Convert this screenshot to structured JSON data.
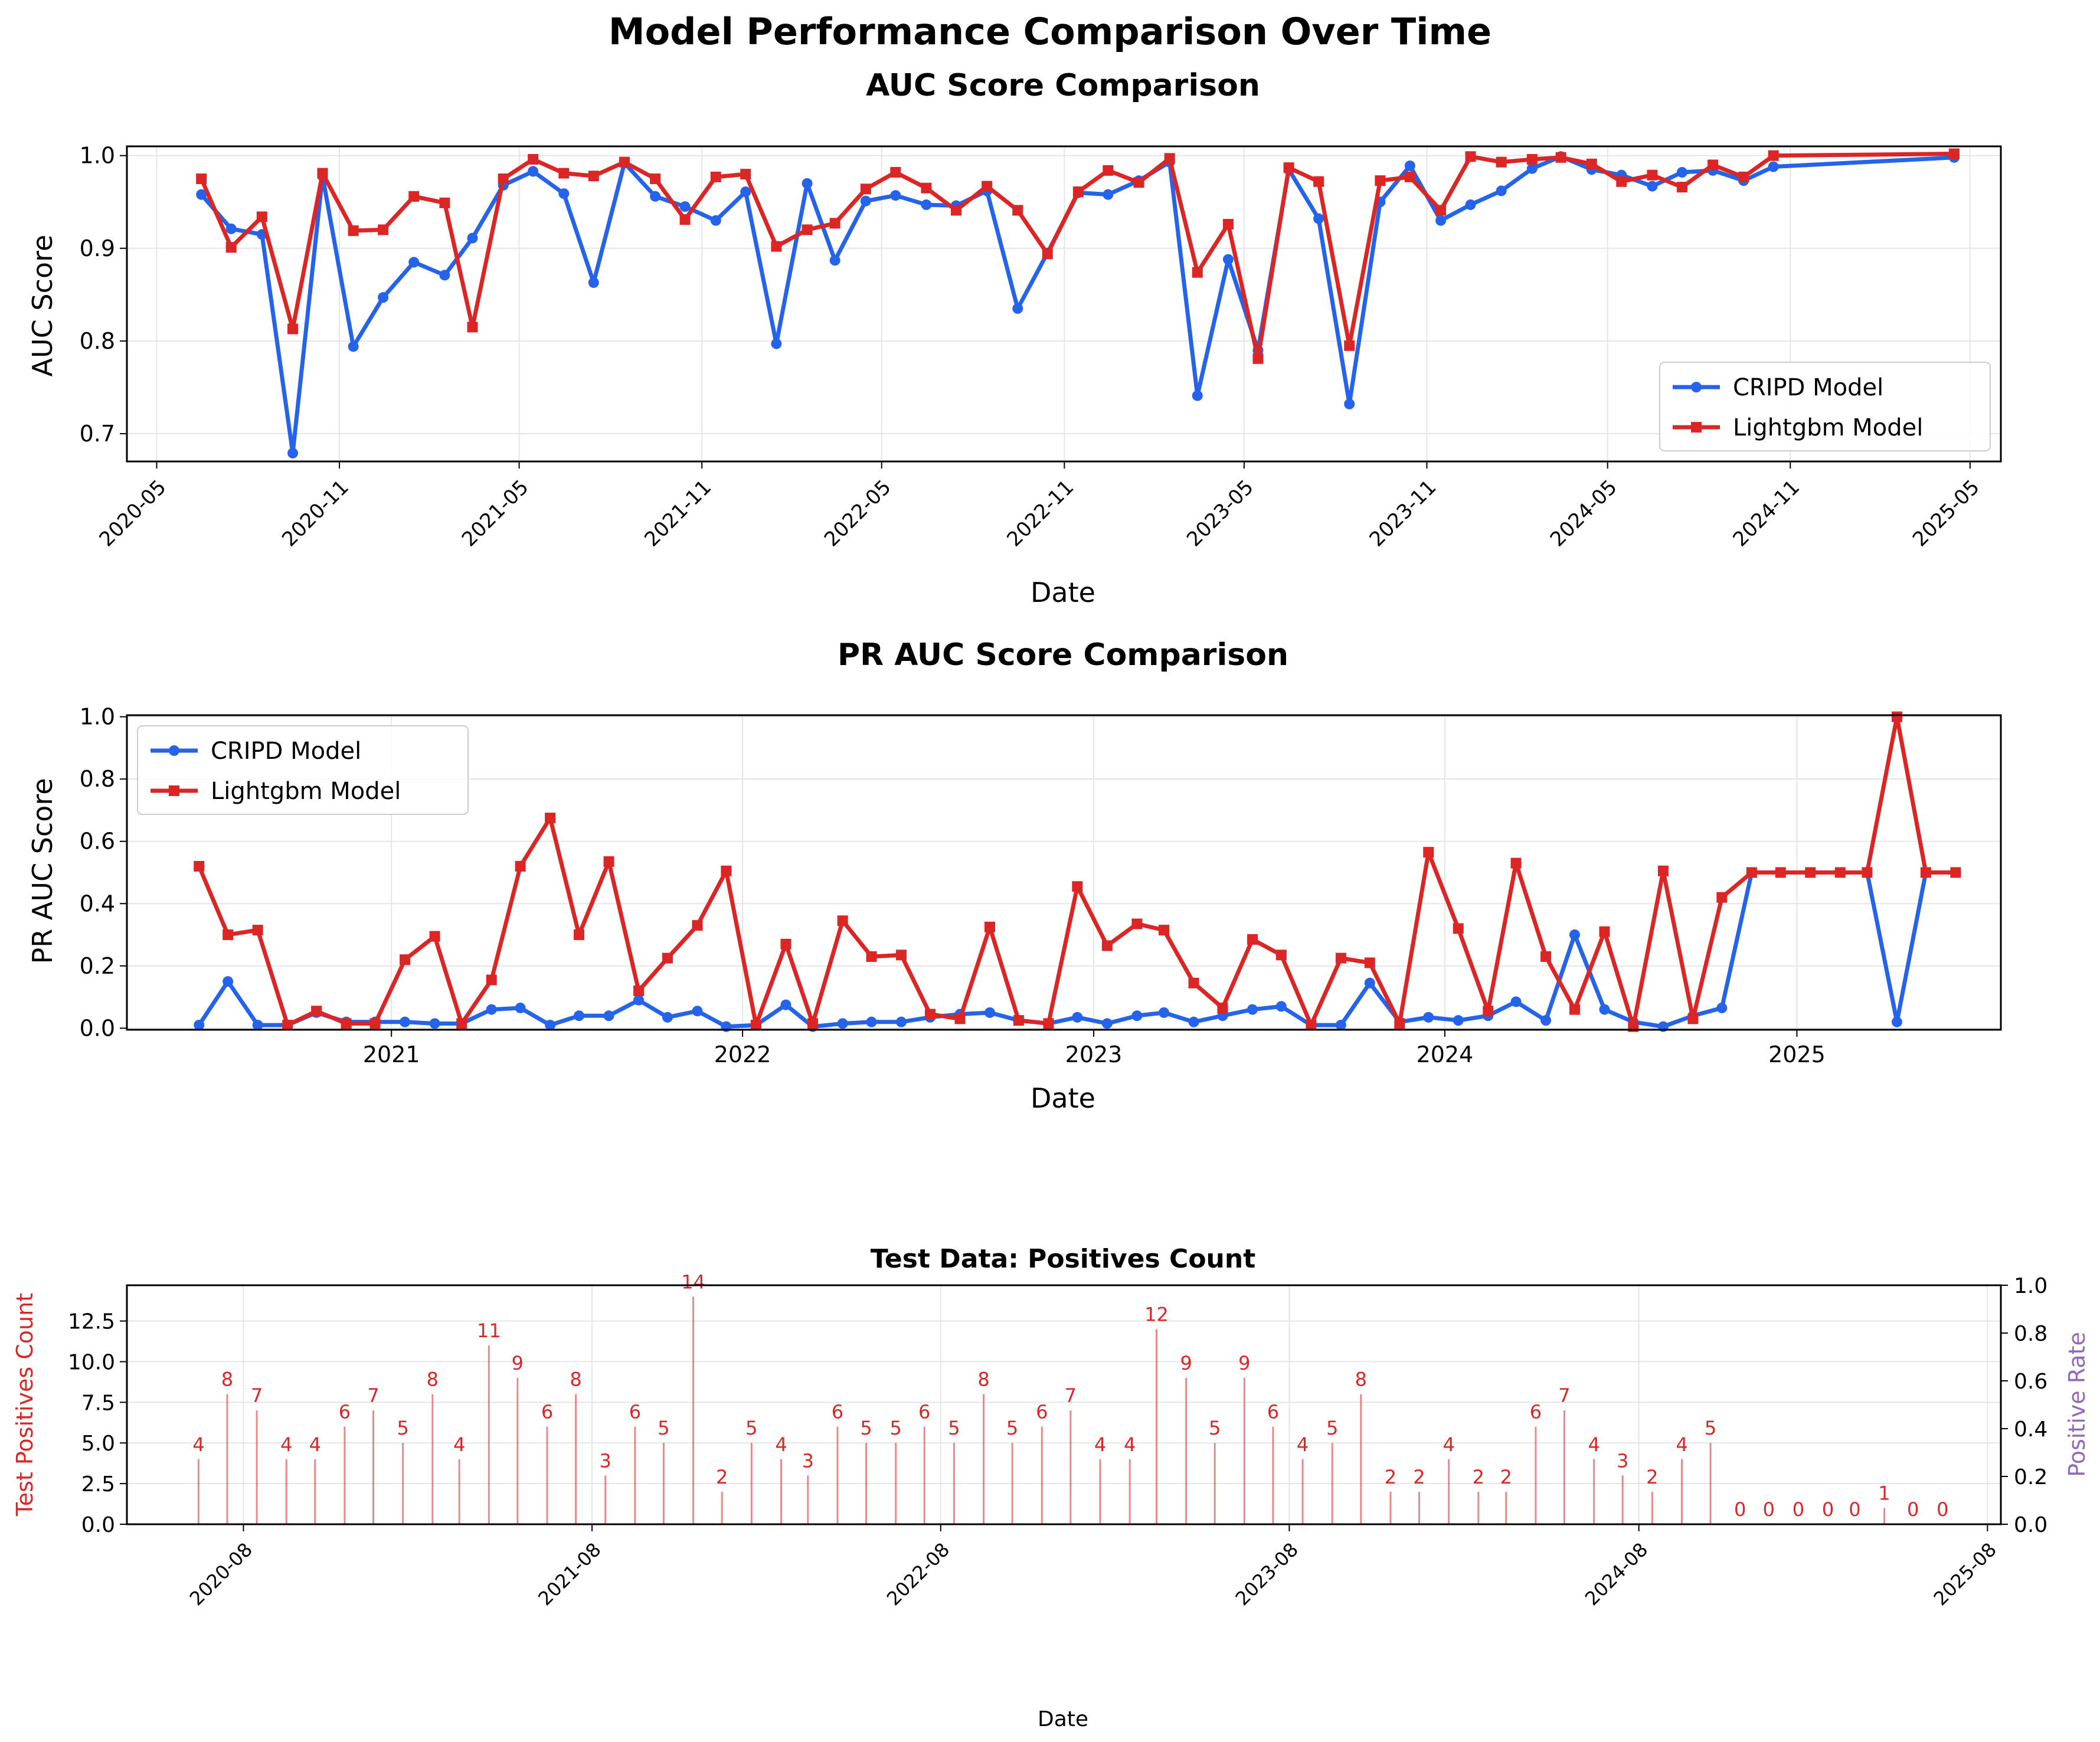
{
  "figure": {
    "suptitle": "Model Performance Comparison Over Time"
  },
  "colors": {
    "cripd": "#2563eb",
    "lightgbm": "#dc2626",
    "count_label": "#dc2626",
    "rate_label": "#9467bd",
    "grid": "#e5e5e5"
  },
  "chart_data": [
    {
      "type": "line",
      "title": "AUC Score Comparison",
      "xlabel": "Date",
      "ylabel": "AUC Score",
      "xlim": [
        "2020-04-01",
        "2025-06-01"
      ],
      "ylim": [
        0.67,
        1.01
      ],
      "x_ticks": [
        "2020-05",
        "2020-11",
        "2021-05",
        "2021-11",
        "2022-05",
        "2022-11",
        "2023-05",
        "2023-11",
        "2024-05",
        "2024-11",
        "2025-05"
      ],
      "y_ticks": [
        "0.7",
        "0.8",
        "0.9",
        "1.0"
      ],
      "grid": true,
      "legend": "lower-right",
      "series": [
        {
          "name": "CRIPD Model",
          "x": [
            "2020-06-15",
            "2020-07-15",
            "2020-08-15",
            "2020-09-15",
            "2020-10-15",
            "2020-11-15",
            "2020-12-15",
            "2021-01-15",
            "2021-02-15",
            "2021-03-15",
            "2021-04-15",
            "2021-05-15",
            "2021-06-15",
            "2021-07-15",
            "2021-08-15",
            "2021-09-15",
            "2021-10-15",
            "2021-11-15",
            "2021-12-15",
            "2022-01-15",
            "2022-02-15",
            "2022-03-15",
            "2022-04-15",
            "2022-05-15",
            "2022-06-15",
            "2022-07-15",
            "2022-08-15",
            "2022-09-15",
            "2022-10-15",
            "2022-11-15",
            "2022-12-15",
            "2023-01-15",
            "2023-02-15",
            "2023-03-15",
            "2023-04-15",
            "2023-05-15",
            "2023-06-15",
            "2023-07-15",
            "2023-08-15",
            "2023-09-15",
            "2023-10-15",
            "2023-11-15",
            "2023-12-15",
            "2024-01-15",
            "2024-02-15",
            "2024-03-15",
            "2024-04-15",
            "2024-05-15",
            "2024-06-15",
            "2024-07-15",
            "2024-08-15",
            "2024-09-15",
            "2024-10-15",
            "2025-04-15"
          ],
          "values": [
            0.958,
            0.921,
            0.915,
            0.679,
            0.978,
            0.794,
            0.847,
            0.885,
            0.871,
            0.911,
            0.968,
            0.983,
            0.959,
            0.863,
            0.992,
            0.956,
            0.945,
            0.93,
            0.961,
            0.797,
            0.97,
            0.887,
            0.951,
            0.957,
            0.947,
            0.946,
            0.962,
            0.835,
            0.895,
            0.96,
            0.958,
            0.973,
            0.993,
            0.741,
            0.888,
            0.79,
            0.985,
            0.932,
            0.732,
            0.95,
            0.989,
            0.93,
            0.947,
            0.962,
            0.986,
            0.999,
            0.985,
            0.979,
            0.967,
            0.982,
            0.984,
            0.973,
            0.988,
            0.998
          ]
        },
        {
          "name": "Lightgbm Model",
          "x": [
            "2020-06-15",
            "2020-07-15",
            "2020-08-15",
            "2020-09-15",
            "2020-10-15",
            "2020-11-15",
            "2020-12-15",
            "2021-01-15",
            "2021-02-15",
            "2021-03-15",
            "2021-04-15",
            "2021-05-15",
            "2021-06-15",
            "2021-07-15",
            "2021-08-15",
            "2021-09-15",
            "2021-10-15",
            "2021-11-15",
            "2021-12-15",
            "2022-01-15",
            "2022-02-15",
            "2022-03-15",
            "2022-04-15",
            "2022-05-15",
            "2022-06-15",
            "2022-07-15",
            "2022-08-15",
            "2022-09-15",
            "2022-10-15",
            "2022-11-15",
            "2022-12-15",
            "2023-01-15",
            "2023-02-15",
            "2023-03-15",
            "2023-04-15",
            "2023-05-15",
            "2023-06-15",
            "2023-07-15",
            "2023-08-15",
            "2023-09-15",
            "2023-10-15",
            "2023-11-15",
            "2023-12-15",
            "2024-01-15",
            "2024-02-15",
            "2024-03-15",
            "2024-04-15",
            "2024-05-15",
            "2024-06-15",
            "2024-07-15",
            "2024-08-15",
            "2024-09-15",
            "2024-10-15",
            "2025-04-15"
          ],
          "values": [
            0.975,
            0.901,
            0.934,
            0.813,
            0.981,
            0.919,
            0.92,
            0.956,
            0.949,
            0.815,
            0.975,
            0.996,
            0.981,
            0.978,
            0.993,
            0.975,
            0.931,
            0.977,
            0.98,
            0.902,
            0.92,
            0.927,
            0.964,
            0.982,
            0.965,
            0.941,
            0.967,
            0.941,
            0.894,
            0.961,
            0.984,
            0.971,
            0.997,
            0.874,
            0.926,
            0.781,
            0.987,
            0.972,
            0.795,
            0.973,
            0.977,
            0.941,
            0.999,
            0.993,
            0.996,
            0.998,
            0.991,
            0.972,
            0.979,
            0.966,
            0.99,
            0.977,
            1.0,
            1.002
          ]
        }
      ]
    },
    {
      "type": "line",
      "title": "PR AUC Score Comparison",
      "xlabel": "Date",
      "ylabel": "PR AUC Score",
      "xlim": [
        "2020-04-01",
        "2025-08-01"
      ],
      "ylim": [
        -0.005,
        1.005
      ],
      "x_ticks": [
        "2021",
        "2022",
        "2023",
        "2024",
        "2025"
      ],
      "y_ticks": [
        "0.0",
        "0.2",
        "0.4",
        "0.6",
        "0.8",
        "1.0"
      ],
      "grid": true,
      "legend": "top-left",
      "series": [
        {
          "name": "CRIPD Model",
          "x": [
            "2020-06-15",
            "2020-07-15",
            "2020-08-15",
            "2020-09-15",
            "2020-10-15",
            "2020-11-15",
            "2020-12-15",
            "2021-01-15",
            "2021-02-15",
            "2021-03-15",
            "2021-04-15",
            "2021-05-15",
            "2021-06-15",
            "2021-07-15",
            "2021-08-15",
            "2021-09-15",
            "2021-10-15",
            "2021-11-15",
            "2021-12-15",
            "2022-01-15",
            "2022-02-15",
            "2022-03-15",
            "2022-04-15",
            "2022-05-15",
            "2022-06-15",
            "2022-07-15",
            "2022-08-15",
            "2022-09-15",
            "2022-10-15",
            "2022-11-15",
            "2022-12-15",
            "2023-01-15",
            "2023-02-15",
            "2023-03-15",
            "2023-04-15",
            "2023-05-15",
            "2023-06-15",
            "2023-07-15",
            "2023-08-15",
            "2023-09-15",
            "2023-10-15",
            "2023-11-15",
            "2023-12-15",
            "2024-01-15",
            "2024-02-15",
            "2024-03-15",
            "2024-04-15",
            "2024-05-15",
            "2024-06-15",
            "2024-07-15",
            "2024-08-15",
            "2024-09-15",
            "2024-10-15",
            "2024-11-15",
            "2024-12-15",
            "2025-01-15",
            "2025-02-15",
            "2025-03-15",
            "2025-04-15",
            "2025-05-15",
            "2025-06-15"
          ],
          "values": [
            0.01,
            0.15,
            0.01,
            0.01,
            0.05,
            0.02,
            0.02,
            0.02,
            0.015,
            0.015,
            0.06,
            0.065,
            0.01,
            0.04,
            0.04,
            0.09,
            0.035,
            0.055,
            0.005,
            0.01,
            0.075,
            0.005,
            0.015,
            0.02,
            0.02,
            0.035,
            0.045,
            0.05,
            0.025,
            0.015,
            0.035,
            0.015,
            0.04,
            0.05,
            0.02,
            0.04,
            0.06,
            0.07,
            0.01,
            0.01,
            0.145,
            0.02,
            0.035,
            0.025,
            0.04,
            0.085,
            0.025,
            0.3,
            0.06,
            0.02,
            0.005,
            0.04,
            0.065,
            0.5,
            0.5,
            0.5,
            0.5,
            0.5,
            0.02,
            0.5,
            0.5
          ]
        },
        {
          "name": "Lightgbm Model",
          "x": [
            "2020-06-15",
            "2020-07-15",
            "2020-08-15",
            "2020-09-15",
            "2020-10-15",
            "2020-11-15",
            "2020-12-15",
            "2021-01-15",
            "2021-02-15",
            "2021-03-15",
            "2021-04-15",
            "2021-05-15",
            "2021-06-15",
            "2021-07-15",
            "2021-08-15",
            "2021-09-15",
            "2021-10-15",
            "2021-11-15",
            "2021-12-15",
            "2022-01-15",
            "2022-02-15",
            "2022-03-15",
            "2022-04-15",
            "2022-05-15",
            "2022-06-15",
            "2022-07-15",
            "2022-08-15",
            "2022-09-15",
            "2022-10-15",
            "2022-11-15",
            "2022-12-15",
            "2023-01-15",
            "2023-02-15",
            "2023-03-15",
            "2023-04-15",
            "2023-05-15",
            "2023-06-15",
            "2023-07-15",
            "2023-08-15",
            "2023-09-15",
            "2023-10-15",
            "2023-11-15",
            "2023-12-15",
            "2024-01-15",
            "2024-02-15",
            "2024-03-15",
            "2024-04-15",
            "2024-05-15",
            "2024-06-15",
            "2024-07-15",
            "2024-08-15",
            "2024-09-15",
            "2024-10-15",
            "2024-11-15",
            "2024-12-15",
            "2025-01-15",
            "2025-02-15",
            "2025-03-15",
            "2025-04-15",
            "2025-05-15",
            "2025-06-15"
          ],
          "values": [
            0.52,
            0.3,
            0.315,
            0.01,
            0.055,
            0.015,
            0.015,
            0.22,
            0.295,
            0.015,
            0.155,
            0.52,
            0.675,
            0.3,
            0.535,
            0.12,
            0.225,
            0.33,
            0.505,
            0.01,
            0.27,
            0.015,
            0.345,
            0.23,
            0.235,
            0.045,
            0.03,
            0.325,
            0.025,
            0.015,
            0.455,
            0.265,
            0.335,
            0.315,
            0.145,
            0.065,
            0.285,
            0.235,
            0.01,
            0.225,
            0.21,
            0.015,
            0.565,
            0.32,
            0.055,
            0.53,
            0.23,
            0.06,
            0.31,
            0.005,
            0.505,
            0.03,
            0.42,
            0.5,
            0.5,
            0.5,
            0.5,
            0.5,
            1.0,
            0.5,
            0.5
          ]
        }
      ]
    },
    {
      "type": "bar",
      "title": "Test Data: Positives Count",
      "xlabel": "Date",
      "ylabel": "Test Positives Count",
      "y2label": "Positive Rate",
      "xlim": [
        "2020-04-01",
        "2025-08-15"
      ],
      "ylim": [
        0,
        14.7
      ],
      "y2lim": [
        0,
        1
      ],
      "x_ticks": [
        "2020-08",
        "2021-08",
        "2022-08",
        "2023-08",
        "2024-08",
        "2025-08"
      ],
      "y_ticks": [
        "0.0",
        "2.5",
        "5.0",
        "7.5",
        "10.0",
        "12.5"
      ],
      "y2_ticks": [
        "0.0",
        "0.2",
        "0.4",
        "0.6",
        "0.8",
        "1.0"
      ],
      "grid": true,
      "x": [
        "2020-06-15",
        "2020-07-15",
        "2020-08-15",
        "2020-09-15",
        "2020-10-15",
        "2020-11-15",
        "2020-12-15",
        "2021-01-15",
        "2021-02-15",
        "2021-03-15",
        "2021-04-15",
        "2021-05-15",
        "2021-06-15",
        "2021-07-15",
        "2021-08-15",
        "2021-09-15",
        "2021-10-15",
        "2021-11-15",
        "2021-12-15",
        "2022-01-15",
        "2022-02-15",
        "2022-03-15",
        "2022-04-15",
        "2022-05-15",
        "2022-06-15",
        "2022-07-15",
        "2022-08-15",
        "2022-09-15",
        "2022-10-15",
        "2022-11-15",
        "2022-12-15",
        "2023-01-15",
        "2023-02-15",
        "2023-03-15",
        "2023-04-15",
        "2023-05-15",
        "2023-06-15",
        "2023-07-15",
        "2023-08-15",
        "2023-09-15",
        "2023-10-15",
        "2023-11-15",
        "2023-12-15",
        "2024-01-15",
        "2024-02-15",
        "2024-03-15",
        "2024-04-15",
        "2024-05-15",
        "2024-06-15",
        "2024-07-15",
        "2024-08-15",
        "2024-09-15",
        "2024-10-15",
        "2024-11-15",
        "2024-12-15",
        "2025-01-15",
        "2025-02-15",
        "2025-03-15",
        "2025-04-15",
        "2025-05-15",
        "2025-06-15"
      ],
      "values": [
        4,
        8,
        7,
        4,
        4,
        6,
        7,
        5,
        8,
        4,
        11,
        9,
        6,
        8,
        3,
        6,
        5,
        14,
        2,
        5,
        4,
        3,
        6,
        5,
        5,
        6,
        5,
        8,
        5,
        6,
        7,
        4,
        4,
        12,
        9,
        5,
        9,
        6,
        4,
        5,
        8,
        2,
        2,
        4,
        2,
        2,
        6,
        7,
        4,
        3,
        2,
        4,
        5,
        0,
        0,
        0,
        0,
        0,
        1,
        0,
        0
      ]
    }
  ]
}
